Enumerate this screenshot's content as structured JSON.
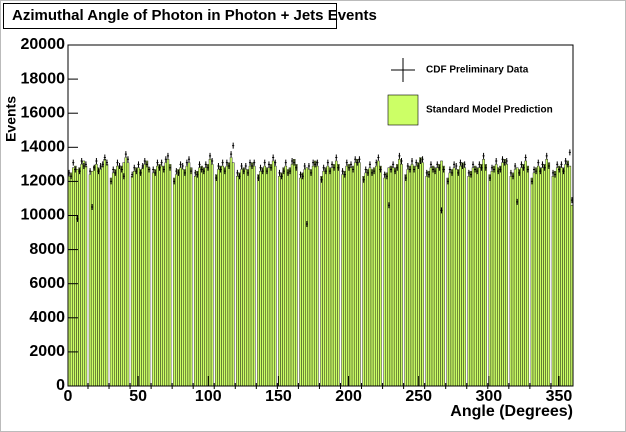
{
  "chart_data": {
    "type": "histogram",
    "title": "Azimuthal Angle of Photon in Photon + Jets Events",
    "x_label": "Angle (Degrees)",
    "y_label": "Events",
    "bins": [
      0,
      1.5,
      3,
      4.5,
      6,
      7.5,
      9,
      10.5,
      12,
      13.5,
      15,
      16.5,
      18,
      19.5,
      21,
      22.5,
      24,
      25.5,
      27,
      28.5,
      30,
      31.5,
      33,
      34.5,
      36,
      37.5,
      39,
      40.5,
      42,
      43.5,
      45,
      46.5,
      48,
      49.5,
      51,
      52.5,
      54,
      55.5,
      57,
      58.5,
      60,
      61.5,
      63,
      64.5,
      66,
      67.5,
      69,
      70.5,
      72,
      73.5,
      75,
      76.5,
      78,
      79.5,
      81,
      82.5,
      84,
      85.5,
      87,
      88.5,
      90,
      91.5,
      93,
      94.5,
      96,
      97.5,
      99,
      100.5,
      102,
      103.5,
      105,
      106.5,
      108,
      109.5,
      111,
      112.5,
      114,
      115.5,
      117,
      118.5,
      120,
      121.5,
      123,
      124.5,
      126,
      127.5,
      129,
      130.5,
      132,
      133.5,
      135,
      136.5,
      138,
      139.5,
      141,
      142.5,
      144,
      145.5,
      147,
      148.5,
      150,
      151.5,
      153,
      154.5,
      156,
      157.5,
      159,
      160.5,
      162,
      163.5,
      165,
      166.5,
      168,
      169.5,
      171,
      172.5,
      174,
      175.5,
      177,
      178.5,
      180,
      181.5,
      183,
      184.5,
      186,
      187.5,
      189,
      190.5,
      192,
      193.5,
      195,
      196.5,
      198,
      199.5,
      201,
      202.5,
      204,
      205.5,
      207,
      208.5,
      210,
      211.5,
      213,
      214.5,
      216,
      217.5,
      219,
      220.5,
      222,
      223.5,
      225,
      226.5,
      228,
      229.5,
      231,
      232.5,
      234,
      235.5,
      237,
      238.5,
      240,
      241.5,
      243,
      244.5,
      246,
      247.5,
      249,
      250.5,
      252,
      253.5,
      255,
      256.5,
      258,
      259.5,
      261,
      262.5,
      264,
      265.5,
      267,
      268.5,
      270,
      271.5,
      273,
      274.5,
      276,
      277.5,
      279,
      280.5,
      282,
      283.5,
      285,
      286.5,
      288,
      289.5,
      291,
      292.5,
      294,
      295.5,
      297,
      298.5,
      300,
      301.5,
      303,
      304.5,
      306,
      307.5,
      309,
      310.5,
      312,
      313.5,
      315,
      316.5,
      318,
      319.5,
      321,
      322.5,
      324,
      325.5,
      327,
      328.5,
      330,
      331.5,
      333,
      334.5,
      336,
      337.5,
      339,
      340.5,
      342,
      343.5,
      345,
      346.5,
      348,
      349.5,
      351,
      352.5,
      354,
      355.5,
      357,
      358.5,
      360
    ],
    "series": [
      {
        "name": "Standard Model Prediction",
        "color": "#ccff66",
        "style": "bar",
        "values": [
          12300,
          12500,
          12800,
          12900,
          12700,
          12800,
          13000,
          13200,
          12900,
          0,
          12400,
          12600,
          12900,
          13000,
          12800,
          12700,
          12900,
          13300,
          13000,
          0,
          12200,
          12500,
          12700,
          12900,
          12800,
          12900,
          13100,
          13400,
          13100,
          0,
          12300,
          12600,
          12800,
          12800,
          12700,
          12800,
          13000,
          13200,
          12800,
          0,
          12500,
          12700,
          12900,
          13000,
          12900,
          12900,
          13100,
          13300,
          13000,
          0,
          12200,
          12400,
          12700,
          12800,
          12700,
          12700,
          12900,
          13100,
          12800,
          0,
          12300,
          12600,
          12800,
          12900,
          12800,
          12800,
          13000,
          13300,
          13000,
          0,
          12400,
          12700,
          12900,
          12900,
          12800,
          12900,
          13100,
          13400,
          13100,
          0,
          12300,
          12500,
          12700,
          12800,
          12700,
          12700,
          12900,
          13100,
          12900,
          0,
          12400,
          12600,
          12800,
          12900,
          12800,
          12800,
          13000,
          13200,
          12900,
          0,
          12300,
          12500,
          12800,
          12900,
          12700,
          12800,
          13000,
          13300,
          13000,
          0,
          12200,
          12500,
          12700,
          12800,
          12700,
          12700,
          12900,
          13200,
          12900,
          0,
          12300,
          12600,
          12800,
          12900,
          12800,
          12800,
          13000,
          13200,
          13000,
          0,
          12400,
          12600,
          12900,
          13000,
          12800,
          12900,
          13100,
          13300,
          13100,
          0,
          12300,
          12500,
          12700,
          12800,
          12700,
          12800,
          12900,
          13200,
          12900,
          0,
          12200,
          12500,
          12800,
          12900,
          12800,
          12800,
          13000,
          13300,
          13000,
          0,
          12400,
          12700,
          12900,
          13000,
          12900,
          12900,
          13100,
          13400,
          13100,
          0,
          12300,
          12600,
          12800,
          12900,
          12800,
          12800,
          13000,
          13200,
          12900,
          0,
          12200,
          12500,
          12700,
          12800,
          12700,
          12700,
          12900,
          13100,
          12800,
          0,
          12300,
          12600,
          12800,
          12900,
          12800,
          12800,
          13000,
          13300,
          13000,
          0,
          12400,
          12600,
          12900,
          13000,
          12800,
          12900,
          13100,
          13300,
          13000,
          0,
          12300,
          12500,
          12700,
          12800,
          12700,
          12800,
          13000,
          13200,
          12900,
          0,
          12200,
          12500,
          12800,
          12900,
          12800,
          12800,
          13000,
          13300,
          13100,
          0,
          12300,
          12600,
          12800,
          12900,
          12800,
          12800,
          13000,
          13200,
          12900,
          10600
        ]
      },
      {
        "name": "CDF Preliminary Data",
        "color": "#000000",
        "style": "cross",
        "values": [
          12500,
          12300,
          13100,
          12700,
          9800,
          12600,
          13200,
          12900,
          13000,
          0,
          12600,
          10500,
          12800,
          13200,
          12600,
          12900,
          13000,
          13400,
          13100,
          0,
          12000,
          12700,
          12500,
          13100,
          12900,
          12700,
          12300,
          13600,
          13300,
          0,
          12400,
          12800,
          12600,
          13000,
          12500,
          12900,
          13200,
          13000,
          12700,
          0,
          12700,
          12500,
          13100,
          12800,
          13100,
          12700,
          13300,
          13500,
          12800,
          0,
          12000,
          12600,
          12500,
          13000,
          12900,
          12500,
          13100,
          13300,
          12600,
          0,
          12500,
          12400,
          13000,
          12700,
          12600,
          13000,
          12800,
          13500,
          13200,
          0,
          12200,
          12900,
          12700,
          13100,
          12600,
          13100,
          12900,
          13600,
          14100,
          0,
          12500,
          12300,
          12900,
          12600,
          12900,
          12500,
          13100,
          12900,
          13100,
          0,
          12200,
          12800,
          12600,
          13100,
          12600,
          13000,
          12800,
          13400,
          13100,
          0,
          12500,
          12300,
          12600,
          13100,
          12500,
          12600,
          13200,
          13100,
          12800,
          0,
          12400,
          12300,
          12900,
          9500,
          12900,
          12500,
          13100,
          13000,
          13100,
          0,
          12100,
          12800,
          12600,
          13100,
          12600,
          13000,
          12800,
          13400,
          12800,
          0,
          12600,
          12400,
          13100,
          12800,
          13000,
          12700,
          13300,
          13100,
          13300,
          0,
          12100,
          12700,
          12500,
          13000,
          12500,
          12600,
          13100,
          13400,
          12700,
          0,
          12400,
          12300,
          10600,
          12700,
          13000,
          12600,
          12800,
          13500,
          13200,
          0,
          12200,
          12900,
          12700,
          13200,
          12700,
          13100,
          12900,
          13200,
          13300,
          0,
          12500,
          12400,
          13000,
          12700,
          12600,
          13000,
          12800,
          10300,
          12700,
          0,
          12000,
          12700,
          12500,
          13000,
          12900,
          12500,
          13100,
          12900,
          13000,
          0,
          12500,
          12400,
          13000,
          12700,
          12600,
          13000,
          12800,
          13500,
          12800,
          0,
          12200,
          12800,
          12700,
          13200,
          12600,
          12700,
          13300,
          13100,
          13200,
          0,
          12500,
          12300,
          12900,
          10800,
          12500,
          13000,
          12800,
          13400,
          12700,
          0,
          12000,
          12700,
          12600,
          13100,
          12600,
          13000,
          12800,
          13500,
          12900,
          0,
          12500,
          12400,
          13000,
          12700,
          13000,
          12600,
          13200,
          13000,
          13700,
          10900
        ]
      }
    ],
    "xlim": [
      0,
      360
    ],
    "xticks": [
      0,
      50,
      100,
      150,
      200,
      250,
      300,
      350
    ],
    "ylim": [
      0,
      20000
    ],
    "yticks": [
      0,
      2000,
      4000,
      6000,
      8000,
      10000,
      12000,
      14000,
      16000,
      18000,
      20000
    ],
    "legend": "upper right"
  }
}
